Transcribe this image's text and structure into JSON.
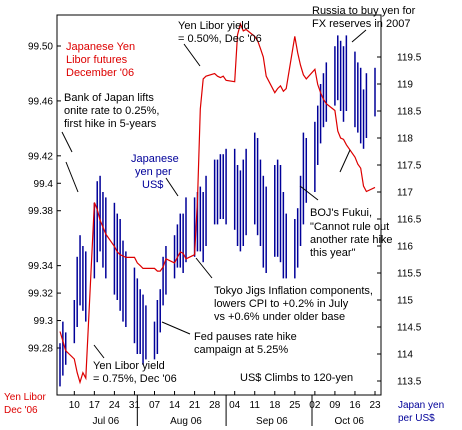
{
  "chart_data": {
    "type": "line",
    "left_axis": {
      "label": "Yen Libor Dec '06",
      "ticks": [
        "99.50",
        "99.46",
        "99.42",
        "99.4",
        "99.38",
        "99.34",
        "99.32",
        "99.3",
        "99.28"
      ],
      "tick_values": [
        99.5,
        99.46,
        99.42,
        99.4,
        99.38,
        99.34,
        99.32,
        99.3,
        99.28
      ]
    },
    "right_axis": {
      "label": "Japan yen per US$",
      "ticks": [
        "119.5",
        "119",
        "118.5",
        "118",
        "117.5",
        "117",
        "116.5",
        "116",
        "115.5",
        "115",
        "114.5",
        "114",
        "113.5"
      ],
      "tick_values": [
        119.5,
        119,
        118.5,
        118,
        117.5,
        117,
        116.5,
        116,
        115.5,
        115,
        114.5,
        114,
        113.5
      ]
    },
    "x_axis": {
      "day_ticks": [
        "10",
        "17",
        "24",
        "31",
        "07",
        "14",
        "21",
        "28",
        "04",
        "11",
        "18",
        "25",
        "02",
        "09",
        "16",
        "23"
      ],
      "months": [
        "Jul 06",
        "Aug 06",
        "Sep 06",
        "Oct 06"
      ]
    },
    "series": [
      {
        "name": "Japanese Yen Libor futures December '06",
        "axis": "left",
        "color": "#dd0000",
        "x": [
          "2006-07-05",
          "2006-07-06",
          "2006-07-07",
          "2006-07-10",
          "2006-07-11",
          "2006-07-12",
          "2006-07-13",
          "2006-07-14",
          "2006-07-17",
          "2006-07-18",
          "2006-07-19",
          "2006-07-20",
          "2006-07-21",
          "2006-07-24",
          "2006-07-25",
          "2006-07-26",
          "2006-07-27",
          "2006-07-28",
          "2006-07-31",
          "2006-08-01",
          "2006-08-02",
          "2006-08-03",
          "2006-08-04",
          "2006-08-07",
          "2006-08-08",
          "2006-08-09",
          "2006-08-10",
          "2006-08-11",
          "2006-08-14",
          "2006-08-15",
          "2006-08-16",
          "2006-08-17",
          "2006-08-18",
          "2006-08-21",
          "2006-08-22",
          "2006-08-23",
          "2006-08-24",
          "2006-08-25",
          "2006-08-28",
          "2006-08-29",
          "2006-08-30",
          "2006-08-31",
          "2006-09-01",
          "2006-09-04",
          "2006-09-05",
          "2006-09-06",
          "2006-09-07",
          "2006-09-08",
          "2006-09-11",
          "2006-09-12",
          "2006-09-13",
          "2006-09-14",
          "2006-09-15",
          "2006-09-18",
          "2006-09-19",
          "2006-09-20",
          "2006-09-21",
          "2006-09-22",
          "2006-09-25",
          "2006-09-26",
          "2006-09-27",
          "2006-09-28",
          "2006-09-29",
          "2006-10-02",
          "2006-10-03",
          "2006-10-04",
          "2006-10-05",
          "2006-10-06",
          "2006-10-09",
          "2006-10-10",
          "2006-10-11",
          "2006-10-12",
          "2006-10-13",
          "2006-10-16",
          "2006-10-17",
          "2006-10-18",
          "2006-10-19",
          "2006-10-20",
          "2006-10-23"
        ],
        "values": [
          99.292,
          99.285,
          99.278,
          99.272,
          99.262,
          99.255,
          99.262,
          99.258,
          99.386,
          99.381,
          99.373,
          99.368,
          99.363,
          99.354,
          99.35,
          99.348,
          99.347,
          99.346,
          99.346,
          99.342,
          99.34,
          99.338,
          99.338,
          99.338,
          99.336,
          99.336,
          99.339,
          99.345,
          99.342,
          99.346,
          99.35,
          99.349,
          99.345,
          99.348,
          99.388,
          99.454,
          99.476,
          99.478,
          99.48,
          99.478,
          99.477,
          99.478,
          99.475,
          99.474,
          99.508,
          99.516,
          99.511,
          99.512,
          99.507,
          99.504,
          99.498,
          99.492,
          99.478,
          99.466,
          99.469,
          99.471,
          99.467,
          99.469,
          99.507,
          99.495,
          99.486,
          99.479,
          99.476,
          99.483,
          99.472,
          99.466,
          99.461,
          99.458,
          99.453,
          99.438,
          99.433,
          99.432,
          99.428,
          99.419,
          99.414,
          99.411,
          99.398,
          99.394,
          99.397
        ]
      },
      {
        "name": "Japanese yen per US$",
        "axis": "right",
        "color": "#000099",
        "style": "high-low bars",
        "x": [
          "2006-07-05",
          "2006-07-06",
          "2006-07-07",
          "2006-07-10",
          "2006-07-11",
          "2006-07-12",
          "2006-07-13",
          "2006-07-14",
          "2006-07-17",
          "2006-07-18",
          "2006-07-19",
          "2006-07-20",
          "2006-07-21",
          "2006-07-24",
          "2006-07-25",
          "2006-07-26",
          "2006-07-27",
          "2006-07-28",
          "2006-07-31",
          "2006-08-01",
          "2006-08-02",
          "2006-08-03",
          "2006-08-04",
          "2006-08-07",
          "2006-08-08",
          "2006-08-09",
          "2006-08-10",
          "2006-08-11",
          "2006-08-14",
          "2006-08-15",
          "2006-08-16",
          "2006-08-17",
          "2006-08-18",
          "2006-08-21",
          "2006-08-22",
          "2006-08-23",
          "2006-08-24",
          "2006-08-25",
          "2006-08-28",
          "2006-08-29",
          "2006-08-30",
          "2006-08-31",
          "2006-09-01",
          "2006-09-04",
          "2006-09-05",
          "2006-09-06",
          "2006-09-07",
          "2006-09-08",
          "2006-09-11",
          "2006-09-12",
          "2006-09-13",
          "2006-09-14",
          "2006-09-15",
          "2006-09-18",
          "2006-09-19",
          "2006-09-20",
          "2006-09-21",
          "2006-09-22",
          "2006-09-25",
          "2006-09-26",
          "2006-09-27",
          "2006-09-28",
          "2006-09-29",
          "2006-10-02",
          "2006-10-03",
          "2006-10-04",
          "2006-10-05",
          "2006-10-06",
          "2006-10-09",
          "2006-10-10",
          "2006-10-11",
          "2006-10-12",
          "2006-10-13",
          "2006-10-16",
          "2006-10-17",
          "2006-10-18",
          "2006-10-19",
          "2006-10-20",
          "2006-10-23"
        ],
        "high": [
          114.2,
          114.6,
          114.4,
          115.0,
          115.8,
          116.2,
          116.0,
          115.9,
          116.8,
          117.2,
          117.3,
          117.0,
          116.9,
          116.8,
          116.6,
          116.5,
          116.1,
          115.9,
          115.6,
          115.4,
          115.2,
          115.1,
          114.9,
          114.6,
          115.0,
          115.2,
          115.8,
          116.0,
          116.2,
          116.4,
          116.6,
          116.6,
          116.9,
          116.9,
          117.0,
          117.1,
          117.0,
          117.3,
          117.6,
          117.6,
          117.7,
          117.7,
          117.8,
          117.8,
          117.5,
          117.4,
          117.6,
          117.8,
          118.1,
          118.0,
          117.6,
          117.3,
          117.1,
          117.5,
          117.6,
          117.5,
          117.0,
          116.6,
          116.5,
          116.7,
          117.3,
          118.1,
          118.0,
          118.3,
          118.6,
          119.0,
          119.2,
          119.4,
          119.7,
          119.9,
          119.8,
          119.7,
          119.9,
          119.6,
          119.4,
          119.3,
          118.9,
          119.2,
          119.3
        ],
        "low": [
          113.4,
          113.6,
          113.8,
          114.2,
          114.5,
          114.9,
          114.8,
          114.6,
          115.4,
          115.7,
          115.9,
          115.6,
          115.4,
          115.1,
          115.0,
          114.8,
          114.6,
          114.5,
          114.2,
          114.0,
          114.0,
          113.8,
          113.9,
          113.9,
          114.0,
          114.4,
          114.9,
          115.1,
          115.4,
          115.6,
          115.6,
          115.5,
          115.7,
          115.8,
          115.9,
          115.9,
          115.7,
          116.0,
          116.4,
          116.4,
          116.5,
          116.5,
          116.4,
          116.3,
          116.0,
          115.9,
          116.0,
          116.2,
          116.4,
          116.2,
          116.0,
          115.6,
          115.5,
          115.8,
          115.8,
          115.7,
          115.4,
          115.4,
          115.4,
          115.6,
          116.0,
          116.4,
          116.8,
          117.0,
          117.5,
          117.9,
          118.2,
          118.3,
          118.6,
          118.7,
          118.5,
          118.3,
          118.5,
          118.2,
          118.1,
          117.9,
          117.8,
          118.0,
          118.4
        ]
      }
    ],
    "annotations": {
      "libor_series_label": "Japanese Yen Libor futures December '06",
      "yen_series_label": "Japanese yen per US$",
      "boj_lift": "Bank of Japan lifts onite rate to 0.25%, first hike in 5-years",
      "libor_050": "Yen Libor yield = 0.50%, Dec '06",
      "russia": "Russia to buy yen for FX reserves in 2007",
      "fukui": "BOJ's Fukui, \"Cannot rule out another rate hike this year\"",
      "tokyo": "Tokyo Jigs Inflation components, lowers CPI to +0.2% in July vs +0.6% under older base",
      "fed": "Fed pauses rate hike campaign at 5.25%",
      "libor_075": "Yen Libor yield = 0.75%, Dec '06",
      "climbs": "US$ Climbs to 120-yen"
    }
  }
}
